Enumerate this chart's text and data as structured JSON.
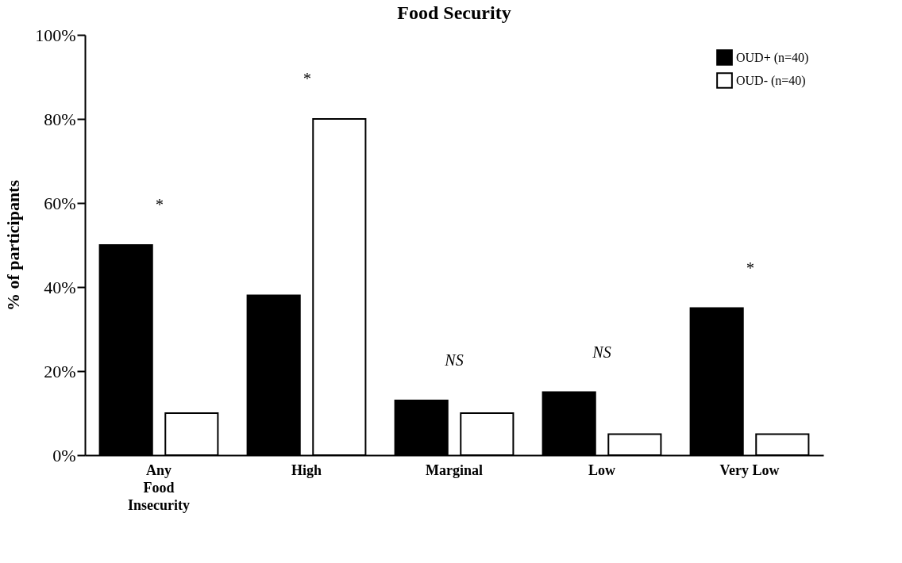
{
  "chart_data": {
    "type": "bar",
    "title": "Food Security",
    "ylabel": "% of participants",
    "categories": [
      "Any Food Insecurity",
      "High",
      "Marginal",
      "Low",
      "Very Low"
    ],
    "series": [
      {
        "name": "OUD+ (n=40)",
        "color": "#000000",
        "values": [
          50,
          38,
          13,
          15,
          35
        ]
      },
      {
        "name": "OUD- (n=40)",
        "color": "#ffffff",
        "values": [
          10,
          80,
          10,
          5,
          5
        ]
      }
    ],
    "ylim": [
      0,
      100
    ],
    "yticks": [
      {
        "value": 0,
        "label": "0%"
      },
      {
        "value": 20,
        "label": "20%"
      },
      {
        "value": 40,
        "label": "40%"
      },
      {
        "value": 60,
        "label": "60%"
      },
      {
        "value": 80,
        "label": "80%"
      },
      {
        "value": 100,
        "label": "100%"
      }
    ],
    "annotations": [
      "*",
      "*",
      "NS",
      "NS",
      "*"
    ],
    "legend": "top right",
    "grid": false
  }
}
